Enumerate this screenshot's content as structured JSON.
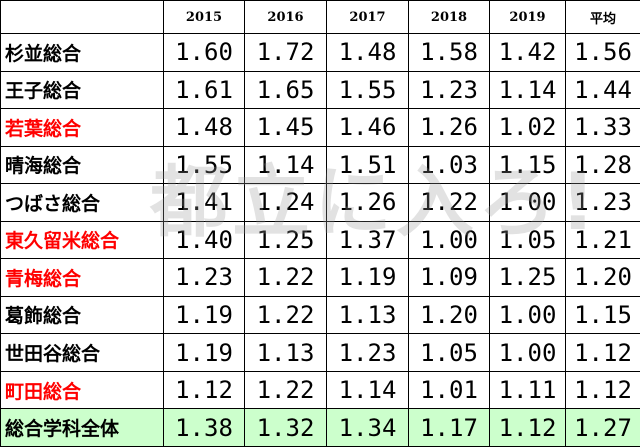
{
  "table": {
    "header": [
      "",
      "2015",
      "2016",
      "2017",
      "2018",
      "2019",
      "平均"
    ],
    "rows": [
      {
        "name": "杉並総合",
        "color": "#000000",
        "values": [
          "1.60",
          "1.72",
          "1.48",
          "1.58",
          "1.42",
          "1.56"
        ]
      },
      {
        "name": "王子総合",
        "color": "#000000",
        "values": [
          "1.61",
          "1.65",
          "1.55",
          "1.23",
          "1.14",
          "1.44"
        ]
      },
      {
        "name": "若葉総合",
        "color": "#ff0000",
        "values": [
          "1.48",
          "1.45",
          "1.46",
          "1.26",
          "1.02",
          "1.33"
        ]
      },
      {
        "name": "晴海総合",
        "color": "#000000",
        "values": [
          "1.55",
          "1.14",
          "1.51",
          "1.03",
          "1.15",
          "1.28"
        ]
      },
      {
        "name": "つばさ総合",
        "color": "#000000",
        "values": [
          "1.41",
          "1.24",
          "1.26",
          "1.22",
          "1.00",
          "1.23"
        ]
      },
      {
        "name": "東久留米総合",
        "color": "#ff0000",
        "values": [
          "1.40",
          "1.25",
          "1.37",
          "1.00",
          "1.05",
          "1.21"
        ]
      },
      {
        "name": "青梅総合",
        "color": "#ff0000",
        "values": [
          "1.23",
          "1.22",
          "1.19",
          "1.09",
          "1.25",
          "1.20"
        ]
      },
      {
        "name": "葛飾総合",
        "color": "#000000",
        "values": [
          "1.19",
          "1.22",
          "1.13",
          "1.20",
          "1.00",
          "1.15"
        ]
      },
      {
        "name": "世田谷総合",
        "color": "#000000",
        "values": [
          "1.19",
          "1.13",
          "1.23",
          "1.05",
          "1.00",
          "1.12"
        ]
      },
      {
        "name": "町田総合",
        "color": "#ff0000",
        "values": [
          "1.12",
          "1.22",
          "1.14",
          "1.01",
          "1.11",
          "1.12"
        ]
      }
    ],
    "total": {
      "name": "総合学科全体",
      "background": "#ccffcc",
      "values": [
        "1.38",
        "1.32",
        "1.34",
        "1.17",
        "1.12",
        "1.27"
      ]
    }
  },
  "watermark": "都立に入ろ!"
}
